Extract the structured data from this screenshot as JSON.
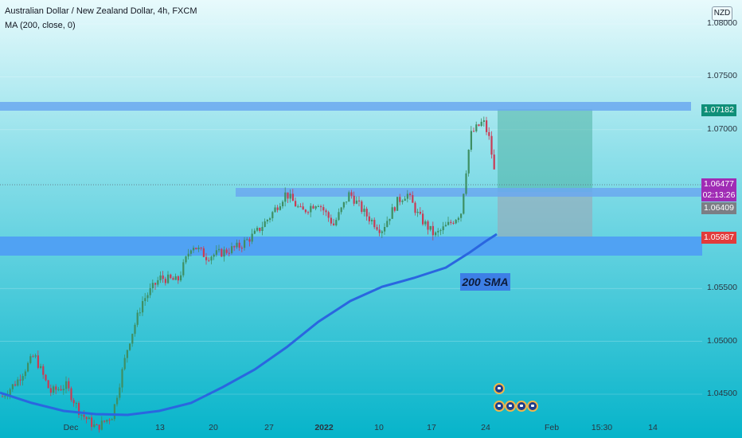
{
  "header": {
    "title": "Australian Dollar / New Zealand Dollar, 4h, FXCM",
    "indicator": "MA (200, close, 0)"
  },
  "axis": {
    "currency": "NZD",
    "y_ticks": [
      "1.08000",
      "1.07500",
      "1.07000",
      "1.05500",
      "1.05000",
      "1.04500"
    ],
    "y_tick_values": [
      1.08,
      1.075,
      1.07,
      1.055,
      1.05,
      1.045
    ],
    "x_ticks": [
      "Dec",
      "13",
      "20",
      "27",
      "2022",
      "10",
      "17",
      "24",
      "Feb",
      "15:30",
      "14"
    ],
    "x_bold": [
      "2022"
    ]
  },
  "price_tags": {
    "target": "1.07182",
    "current": "1.06477",
    "countdown": "02:13:26",
    "entry": "1.06409",
    "stop": "1.05987"
  },
  "annotation": {
    "sma_label": "200 SMA"
  },
  "colors": {
    "background_top": "#e6f9fb",
    "background_bottom": "#08b7cc",
    "zone": "#6ba8f0",
    "sma_line": "#2a66e0",
    "candle_up": "#3e8f63",
    "candle_down": "#c93b54",
    "target_tag": "#0f8f78",
    "current_tag": "#a02cb5",
    "entry_tag": "#7b7e85",
    "stop_tag": "#e23b3b"
  },
  "icons": [
    "australia-flag-icon"
  ],
  "chart_data": {
    "type": "candlestick",
    "symbol": "AUDNZD",
    "timeframe": "4h",
    "ylim": [
      1.0425,
      1.0825
    ],
    "series": [
      {
        "name": "MA (200, close, 0)",
        "values_sample": [
          1.0452,
          1.0436,
          1.043,
          1.0448,
          1.0492,
          1.054,
          1.0572,
          1.06
        ]
      }
    ],
    "zones": [
      {
        "low": 1.0717,
        "high": 1.0725
      },
      {
        "low": 1.0638,
        "high": 1.0645
      },
      {
        "low": 1.0582,
        "high": 1.06
      }
    ],
    "position": {
      "type": "long",
      "entry": 1.06409,
      "target": 1.07182,
      "stop": 1.05987
    },
    "current_price": 1.06477
  }
}
